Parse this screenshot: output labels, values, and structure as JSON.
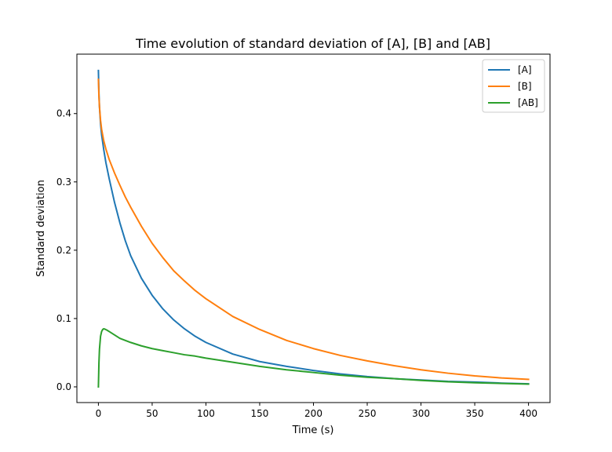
{
  "chart_data": {
    "type": "line",
    "title": "Time evolution of standard deviation of [A], [B] and [AB]",
    "xlabel": "Time (s)",
    "ylabel": "Standard deviation",
    "xlim": [
      -20,
      420
    ],
    "ylim": [
      -0.023,
      0.487
    ],
    "xticks": [
      0,
      50,
      100,
      150,
      200,
      250,
      300,
      350,
      400
    ],
    "yticks": [
      0.0,
      0.1,
      0.2,
      0.3,
      0.4
    ],
    "xtick_labels": [
      "0",
      "50",
      "100",
      "150",
      "200",
      "250",
      "300",
      "350",
      "400"
    ],
    "ytick_labels": [
      "0.0",
      "0.1",
      "0.2",
      "0.3",
      "0.4"
    ],
    "grid": false,
    "legend_position": "top-right",
    "series": [
      {
        "name": "[A]",
        "color": "#1f77b4",
        "x": [
          0,
          0.5,
          1,
          2,
          3,
          5,
          7,
          10,
          15,
          20,
          25,
          30,
          40,
          50,
          60,
          70,
          80,
          90,
          100,
          125,
          150,
          175,
          200,
          225,
          250,
          275,
          300,
          325,
          350,
          375,
          400
        ],
        "y": [
          0.463,
          0.43,
          0.41,
          0.385,
          0.369,
          0.347,
          0.328,
          0.305,
          0.27,
          0.24,
          0.214,
          0.192,
          0.159,
          0.134,
          0.114,
          0.098,
          0.085,
          0.074,
          0.065,
          0.048,
          0.037,
          0.03,
          0.024,
          0.019,
          0.015,
          0.012,
          0.01,
          0.008,
          0.007,
          0.0055,
          0.0045
        ]
      },
      {
        "name": "[B]",
        "color": "#ff7f0e",
        "x": [
          0,
          0.5,
          1,
          2,
          3,
          5,
          7,
          10,
          15,
          20,
          25,
          30,
          40,
          50,
          60,
          70,
          80,
          90,
          100,
          125,
          150,
          175,
          200,
          225,
          250,
          275,
          300,
          325,
          350,
          375,
          400
        ],
        "y": [
          0.45,
          0.425,
          0.41,
          0.39,
          0.377,
          0.36,
          0.348,
          0.333,
          0.313,
          0.295,
          0.278,
          0.263,
          0.235,
          0.21,
          0.189,
          0.17,
          0.155,
          0.141,
          0.129,
          0.103,
          0.084,
          0.068,
          0.056,
          0.046,
          0.038,
          0.031,
          0.025,
          0.02,
          0.016,
          0.013,
          0.011
        ]
      },
      {
        "name": "[AB]",
        "color": "#2ca02c",
        "x": [
          0,
          0.5,
          1,
          2,
          3,
          4,
          5,
          6,
          8,
          10,
          15,
          20,
          25,
          30,
          40,
          50,
          60,
          70,
          80,
          90,
          100,
          125,
          150,
          175,
          200,
          225,
          250,
          275,
          300,
          325,
          350,
          375,
          400
        ],
        "y": [
          0.0,
          0.035,
          0.055,
          0.074,
          0.081,
          0.084,
          0.085,
          0.0845,
          0.083,
          0.081,
          0.076,
          0.071,
          0.068,
          0.065,
          0.06,
          0.056,
          0.053,
          0.05,
          0.047,
          0.045,
          0.042,
          0.036,
          0.03,
          0.025,
          0.021,
          0.017,
          0.014,
          0.012,
          0.0095,
          0.0075,
          0.006,
          0.005,
          0.004
        ]
      }
    ]
  }
}
